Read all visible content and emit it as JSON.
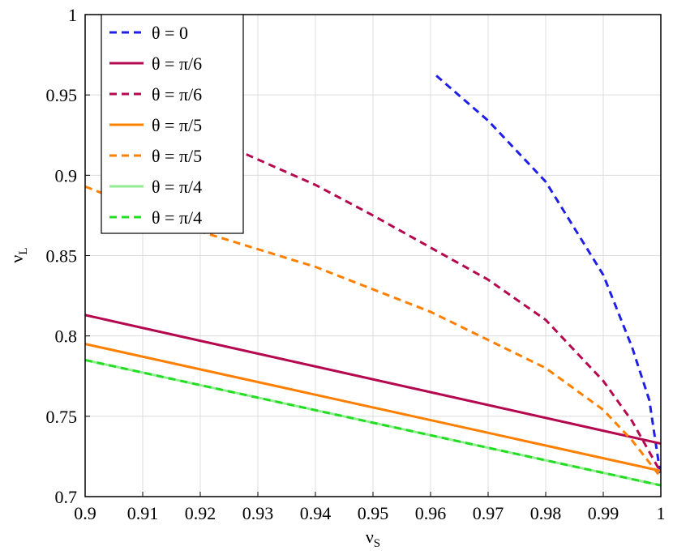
{
  "chart_data": {
    "type": "line",
    "x_label": "ν",
    "x_label_sub": "S",
    "y_label": "ν",
    "y_label_sub": "L",
    "xlim": [
      0.9,
      1
    ],
    "ylim": [
      0.7,
      1
    ],
    "xticks": [
      0.9,
      0.91,
      0.92,
      0.93,
      0.94,
      0.95,
      0.96,
      0.97,
      0.98,
      0.99,
      1
    ],
    "yticks": [
      0.7,
      0.75,
      0.8,
      0.85,
      0.9,
      0.95,
      1
    ],
    "grid": true,
    "legend": "upper-left",
    "series": [
      {
        "name": "θ = 0",
        "color": "#1f1fe6",
        "dashed": true,
        "x": [
          0.961,
          0.97,
          0.98,
          0.99,
          0.995,
          0.998,
          1
        ],
        "values": [
          0.962,
          0.934,
          0.896,
          0.838,
          0.793,
          0.76,
          0.712
        ]
      },
      {
        "name": "θ = π/6",
        "color": "#b5094f",
        "dashed": false,
        "x": [
          0.9,
          1
        ],
        "values": [
          0.813,
          0.733
        ]
      },
      {
        "name": "θ = π/6",
        "color": "#b5094f",
        "dashed": true,
        "x": [
          0.928,
          0.94,
          0.95,
          0.96,
          0.97,
          0.98,
          0.99,
          0.995,
          1
        ],
        "values": [
          0.913,
          0.894,
          0.875,
          0.855,
          0.835,
          0.81,
          0.772,
          0.747,
          0.715
        ]
      },
      {
        "name": "θ = π/5",
        "color": "#ff8000",
        "dashed": false,
        "x": [
          0.9,
          1
        ],
        "values": [
          0.795,
          0.716
        ]
      },
      {
        "name": "θ = π/5",
        "color": "#ff8000",
        "dashed": true,
        "x": [
          0.9,
          0.92,
          0.94,
          0.96,
          0.98,
          0.99,
          0.995,
          1
        ],
        "values": [
          0.893,
          0.865,
          0.843,
          0.815,
          0.78,
          0.754,
          0.735,
          0.712
        ]
      },
      {
        "name": "θ = π/4",
        "color": "#90ee90",
        "dashed": false,
        "x": [
          0.9,
          1
        ],
        "values": [
          0.785,
          0.707
        ]
      },
      {
        "name": "θ = π/4",
        "color": "#22dd22",
        "dashed": true,
        "x": [
          0.9,
          1
        ],
        "values": [
          0.785,
          0.707
        ]
      }
    ]
  }
}
